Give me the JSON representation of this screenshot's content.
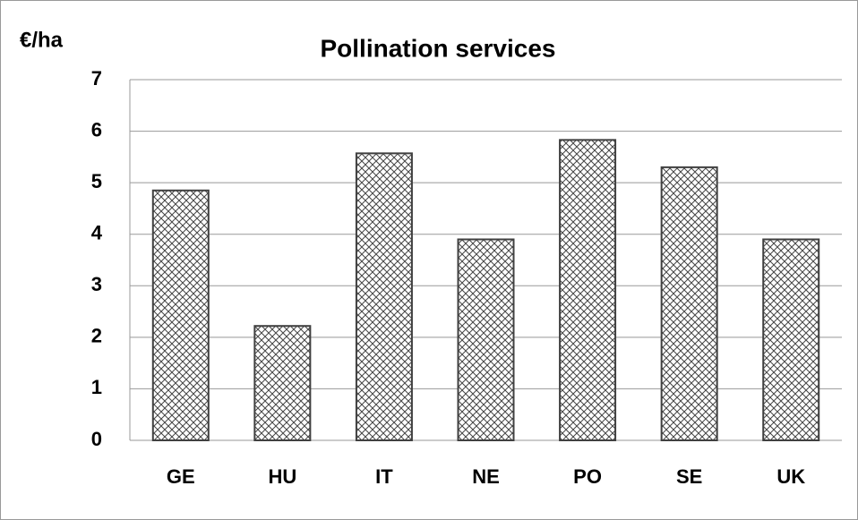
{
  "chart_data": {
    "type": "bar",
    "title": "Pollination services",
    "y_label": "€/ha",
    "categories": [
      "GE",
      "HU",
      "IT",
      "NE",
      "PO",
      "SE",
      "UK"
    ],
    "values": [
      4.85,
      2.22,
      5.57,
      3.9,
      5.83,
      5.3,
      3.9
    ],
    "color": "#404040",
    "ylim": [
      0,
      7
    ],
    "yticks": [
      0,
      1,
      2,
      3,
      4,
      5,
      6,
      7
    ],
    "grid": true
  }
}
